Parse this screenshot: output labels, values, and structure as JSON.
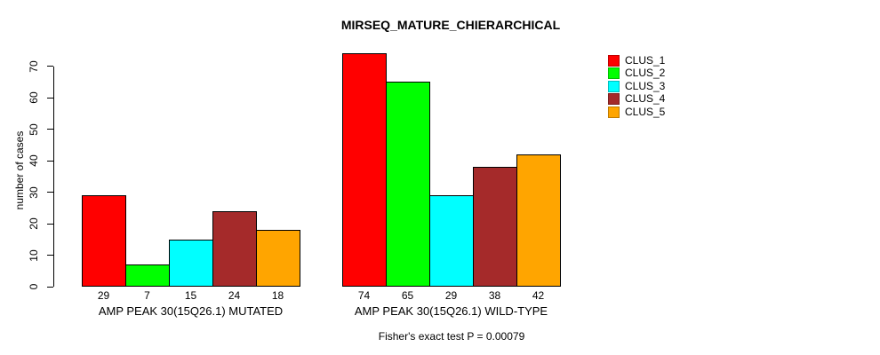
{
  "chart_data": {
    "type": "bar",
    "title": "MIRSEQ_MATURE_CHIERARCHICAL",
    "ylabel": "number of cases",
    "xlabel": "",
    "ylim": [
      0,
      70
    ],
    "yticks": [
      0,
      10,
      20,
      30,
      40,
      50,
      60,
      70
    ],
    "grid": false,
    "legend_position": "top-right",
    "categories": [
      "AMP PEAK 30(15Q26.1) MUTATED",
      "AMP PEAK 30(15Q26.1) WILD-TYPE"
    ],
    "series": [
      {
        "name": "CLUS_1",
        "color": "#FF0000",
        "values": [
          29,
          74
        ]
      },
      {
        "name": "CLUS_2",
        "color": "#00FF00",
        "values": [
          7,
          65
        ]
      },
      {
        "name": "CLUS_3",
        "color": "#00FFFF",
        "values": [
          15,
          29
        ]
      },
      {
        "name": "CLUS_4",
        "color": "#A52A2A",
        "values": [
          24,
          38
        ]
      },
      {
        "name": "CLUS_5",
        "color": "#FFA500",
        "values": [
          18,
          42
        ]
      }
    ],
    "bar_value_labels": [
      [
        29,
        7,
        15,
        24,
        18
      ],
      [
        74,
        65,
        29,
        38,
        42
      ]
    ],
    "annotation": "Fisher's exact test P = 0.00079"
  }
}
